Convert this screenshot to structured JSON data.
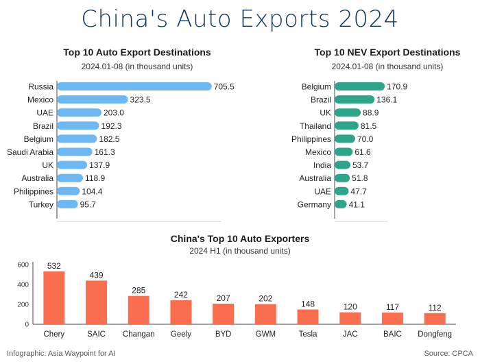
{
  "title": "China's Auto Exports 2024",
  "footer": {
    "credit": "Infographic: Asia Waypoint for AI",
    "source": "Source: CPCA"
  },
  "colors": {
    "blue_bar": "#6db8f2",
    "green_bar": "#2ea58a",
    "red_bar": "#fa6e50",
    "title": "#12375a"
  },
  "chart_data": [
    {
      "type": "bar",
      "orientation": "horizontal",
      "title": "Top 10 Auto Export Destinations",
      "subtitle": "2024.01-08 (in thousand units)",
      "categories": [
        "Russia",
        "Mexico",
        "UAE",
        "Brazil",
        "Belgium",
        "Saudi Arabia",
        "UK",
        "Australia",
        "Philippines",
        "Turkey"
      ],
      "values": [
        705.5,
        323.5,
        203.0,
        192.3,
        182.5,
        161.3,
        137.9,
        118.9,
        104.4,
        95.7
      ],
      "labels": [
        "705.5",
        "323.5",
        "203.0",
        "192.3",
        "182.5",
        "161.3",
        "137.9",
        "118.9",
        "104.4",
        "95.7"
      ],
      "xlim": [
        0,
        750
      ]
    },
    {
      "type": "bar",
      "orientation": "horizontal",
      "title": "Top 10 NEV Export Destinations",
      "subtitle": "2024.01-08 (in thousand units)",
      "categories": [
        "Belgium",
        "Brazil",
        "UK",
        "Thailand",
        "Philippines",
        "Mexico",
        "India",
        "Australia",
        "UAE",
        "Germany"
      ],
      "values": [
        170.9,
        136.1,
        88.9,
        81.5,
        70.0,
        61.6,
        53.7,
        51.8,
        47.7,
        41.1
      ],
      "labels": [
        "170.9",
        "136.1",
        "88.9",
        "81.5",
        "70.0",
        "61.6",
        "53.7",
        "51.8",
        "47.7",
        "41.1"
      ],
      "xlim": [
        0,
        180
      ]
    },
    {
      "type": "bar",
      "orientation": "vertical",
      "title": "China's Top 10 Auto Exporters",
      "subtitle": "2024 H1  (in thousand units)",
      "categories": [
        "Chery",
        "SAIC",
        "Changan",
        "Geely",
        "BYD",
        "GWM",
        "Tesla",
        "JAC",
        "BAIC",
        "Dongfeng"
      ],
      "values": [
        532,
        439,
        285,
        242,
        207,
        202,
        148,
        120,
        117,
        112
      ],
      "yticks": [
        "0",
        "200",
        "400",
        "600"
      ],
      "ylim": [
        0,
        600
      ]
    }
  ]
}
